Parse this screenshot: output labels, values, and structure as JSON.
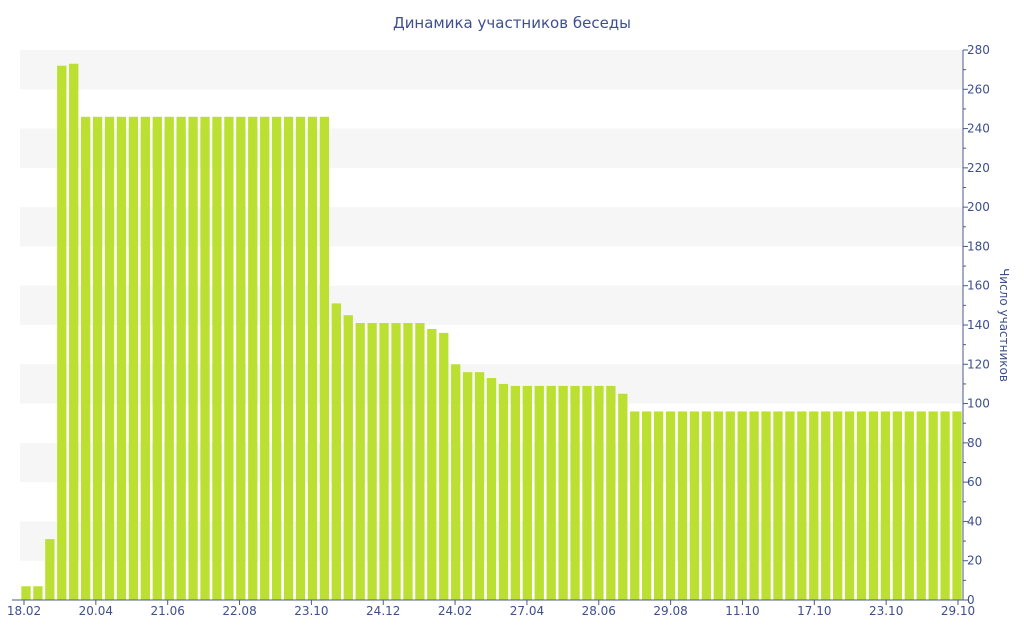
{
  "chart_data": {
    "type": "bar",
    "title": "Динамика участников беседы",
    "xlabel": "",
    "ylabel": "Число участников",
    "ylim": [
      0,
      280
    ],
    "y_ticks": [
      0,
      20,
      40,
      60,
      80,
      100,
      120,
      140,
      160,
      180,
      200,
      220,
      240,
      260,
      280
    ],
    "x_tick_labels": [
      "18.02",
      "20.04",
      "21.06",
      "22.08",
      "23.10",
      "24.12",
      "24.02",
      "27.04",
      "28.06",
      "29.08",
      "11.10",
      "17.10",
      "23.10",
      "29.10"
    ],
    "grid": "alternating horizontal bands",
    "y_axis_position": "right",
    "values": [
      7,
      7,
      31,
      272,
      273,
      246,
      246,
      246,
      246,
      246,
      246,
      246,
      246,
      246,
      246,
      246,
      246,
      246,
      246,
      246,
      246,
      246,
      246,
      246,
      246,
      246,
      151,
      145,
      141,
      141,
      141,
      141,
      141,
      141,
      138,
      136,
      120,
      116,
      116,
      113,
      110,
      109,
      109,
      109,
      109,
      109,
      109,
      109,
      109,
      109,
      105,
      96,
      96,
      96,
      96,
      96,
      96,
      96,
      96,
      96,
      96,
      96,
      96,
      96,
      96,
      96,
      96,
      96,
      96,
      96,
      96,
      96,
      96,
      96,
      96,
      96,
      96,
      96,
      96
    ]
  },
  "colors": {
    "bar": "#bbe032",
    "text": "#3e4f8f",
    "axis": "#4a5a8c",
    "band": "#f6f6f6"
  }
}
